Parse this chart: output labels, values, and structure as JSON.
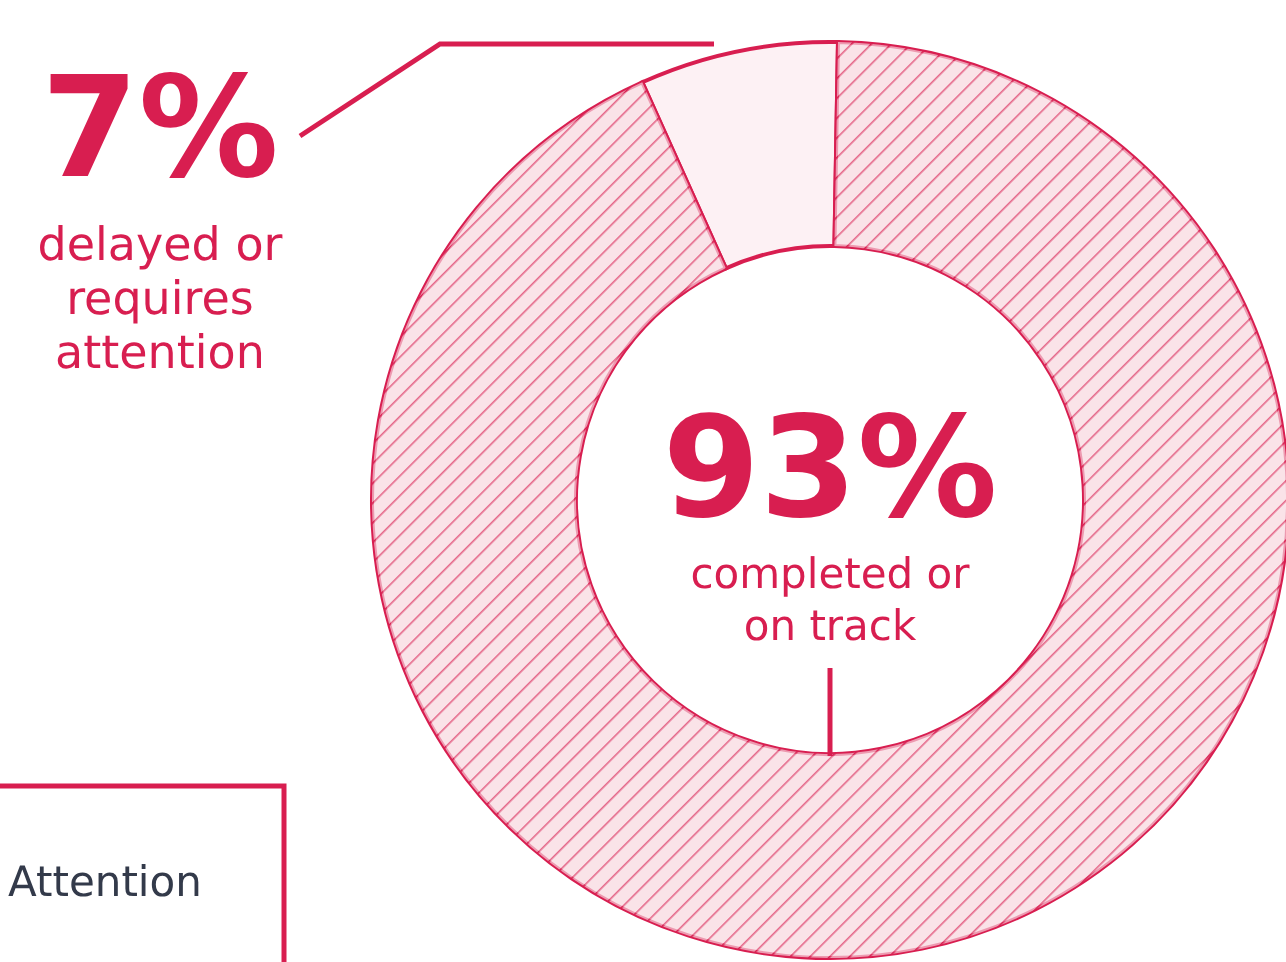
{
  "chart_data": {
    "type": "donut",
    "categories": [
      "delayed or requires attention",
      "completed or on track"
    ],
    "values": [
      7,
      93
    ],
    "colors": [
      "#fdf1f4",
      "#f4c0cd"
    ],
    "value_labels": [
      "7%",
      "93%"
    ],
    "annotations": [
      "Attention"
    ]
  }
}
